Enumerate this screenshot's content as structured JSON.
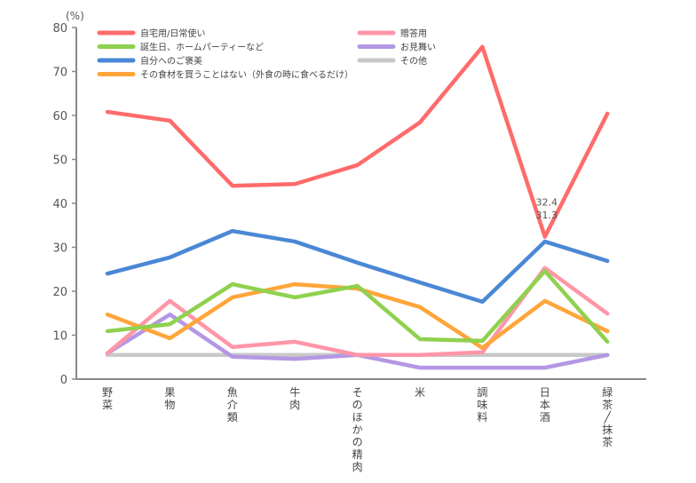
{
  "chart_data": {
    "type": "line",
    "title": "",
    "ylabel": "(%)",
    "xlabel": "",
    "ylim": [
      0,
      80
    ],
    "yticks": [
      0,
      10,
      20,
      30,
      40,
      50,
      60,
      70,
      80
    ],
    "grid": false,
    "legend_placement": "top",
    "categories": [
      "野菜",
      "果物",
      "魚介類",
      "牛肉",
      "そのほかの精肉",
      "米",
      "調味料",
      "日本酒",
      "緑茶/抹茶"
    ],
    "series": [
      {
        "name": "自宅用/日常使い",
        "color": "#ff6b6b",
        "values": [
          60.8,
          58.8,
          44.0,
          44.4,
          48.7,
          58.4,
          75.6,
          32.4,
          60.4
        ]
      },
      {
        "name": "誕生日、ホームパーティーなど",
        "color": "#8fd14f",
        "values": [
          10.9,
          12.5,
          21.6,
          18.6,
          21.2,
          9.1,
          8.7,
          24.6,
          8.5
        ]
      },
      {
        "name": "自分へのご褒美",
        "color": "#4a88d6",
        "values": [
          24.0,
          27.7,
          33.7,
          31.3,
          26.5,
          22.0,
          17.6,
          31.3,
          26.9
        ]
      },
      {
        "name": "その食材を買うことはない（外食の時に食べるだけ）",
        "color": "#ffa53a",
        "values": [
          14.7,
          9.3,
          18.6,
          21.6,
          20.6,
          16.4,
          7.1,
          17.8,
          10.9
        ]
      },
      {
        "name": "贈答用",
        "color": "#ff96a8",
        "values": [
          5.9,
          17.8,
          7.3,
          8.5,
          5.5,
          5.5,
          6.1,
          25.3,
          14.9
        ]
      },
      {
        "name": "お見舞い",
        "color": "#b497e4",
        "values": [
          5.9,
          14.7,
          5.1,
          4.6,
          5.5,
          2.6,
          2.6,
          2.6,
          5.5
        ]
      },
      {
        "name": "その他",
        "color": "#c8c8c8",
        "values": [
          5.5,
          5.5,
          5.5,
          5.5,
          5.5,
          5.5,
          5.5,
          5.5,
          5.5
        ]
      }
    ],
    "annotations": [
      {
        "text": "32.4",
        "series": "自宅用/日常使い",
        "category": "日本酒"
      },
      {
        "text": "31.3",
        "series": "自分へのご褒美",
        "category": "日本酒"
      }
    ]
  }
}
